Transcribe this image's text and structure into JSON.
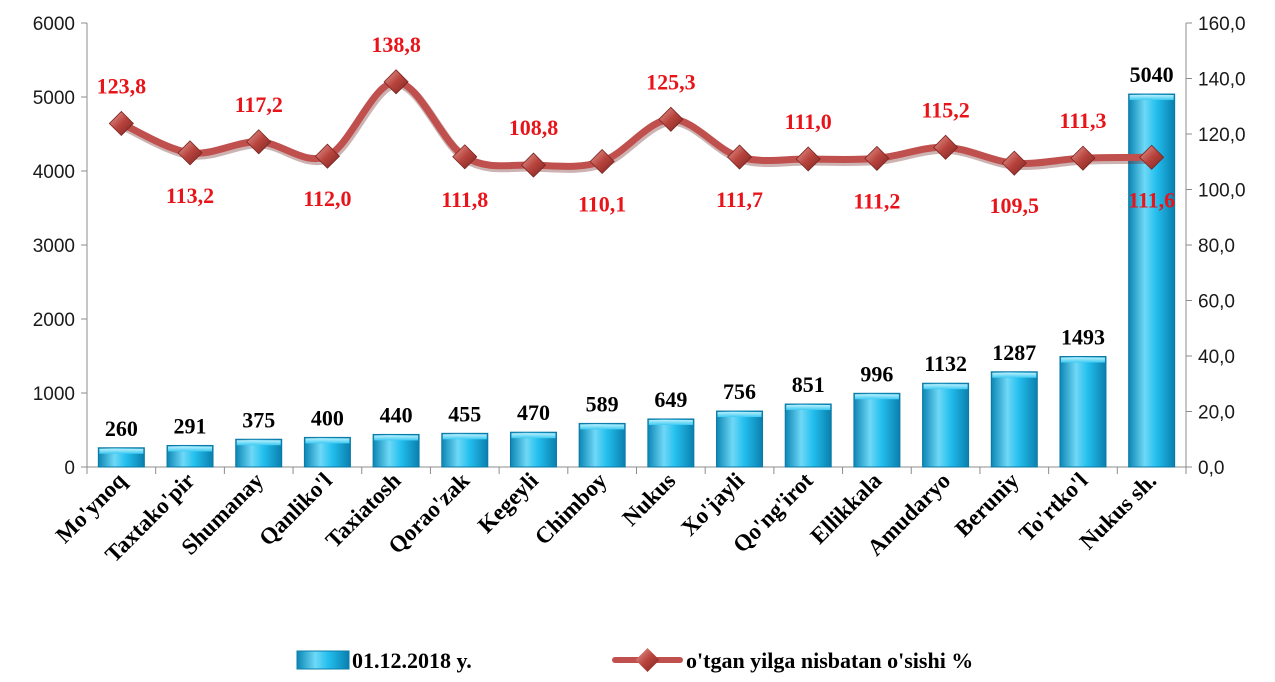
{
  "chart_data": {
    "type": "bar+line",
    "categories": [
      "Mo'ynoq",
      "Taxtako'pir",
      "Shumanay",
      "Qanliko'l",
      "Taxiatosh",
      "Qorao'zak",
      "Kegeyli",
      "Chimboy",
      "Nukus",
      "Xo'jayli",
      "Qo'ng'irot",
      "Ellikkala",
      "Amudaryo",
      "Beruniy",
      "To'rtko'l",
      "Nukus sh."
    ],
    "series": [
      {
        "name": "01.12.2018 y.",
        "type": "bar",
        "axis": "left",
        "values": [
          260,
          291,
          375,
          400,
          440,
          455,
          470,
          589,
          649,
          756,
          851,
          996,
          1132,
          1287,
          1493,
          5040
        ],
        "labels": [
          "260",
          "291",
          "375",
          "400",
          "440",
          "455",
          "470",
          "589",
          "649",
          "756",
          "851",
          "996",
          "1132",
          "1287",
          "1493",
          "5040"
        ],
        "color": "#18b4e6"
      },
      {
        "name": "o'tgan yilga nisbatan o'sishi %",
        "type": "line",
        "axis": "right",
        "values": [
          123.8,
          113.2,
          117.2,
          112.0,
          138.8,
          111.8,
          108.8,
          110.1,
          125.3,
          111.7,
          111.0,
          111.2,
          115.2,
          109.5,
          111.3,
          111.6
        ],
        "labels": [
          "123,8",
          "113,2",
          "117,2",
          "112,0",
          "138,8",
          "111,8",
          "108,8",
          "110,1",
          "125,3",
          "111,7",
          "111,0",
          "111,2",
          "115,2",
          "109,5",
          "111,3",
          "111,6"
        ],
        "color": "#c0504d",
        "label_color": "#e8141a"
      }
    ],
    "y_left": {
      "min": 0,
      "max": 6000,
      "ticks": [
        "0",
        "1000",
        "2000",
        "3000",
        "4000",
        "5000",
        "6000"
      ]
    },
    "y_right": {
      "min": 0,
      "max": 160,
      "ticks": [
        "0,0",
        "20,0",
        "40,0",
        "60,0",
        "80,0",
        "100,0",
        "120,0",
        "140,0",
        "160,0"
      ]
    },
    "legend_placement": "bottom",
    "grid": false
  }
}
